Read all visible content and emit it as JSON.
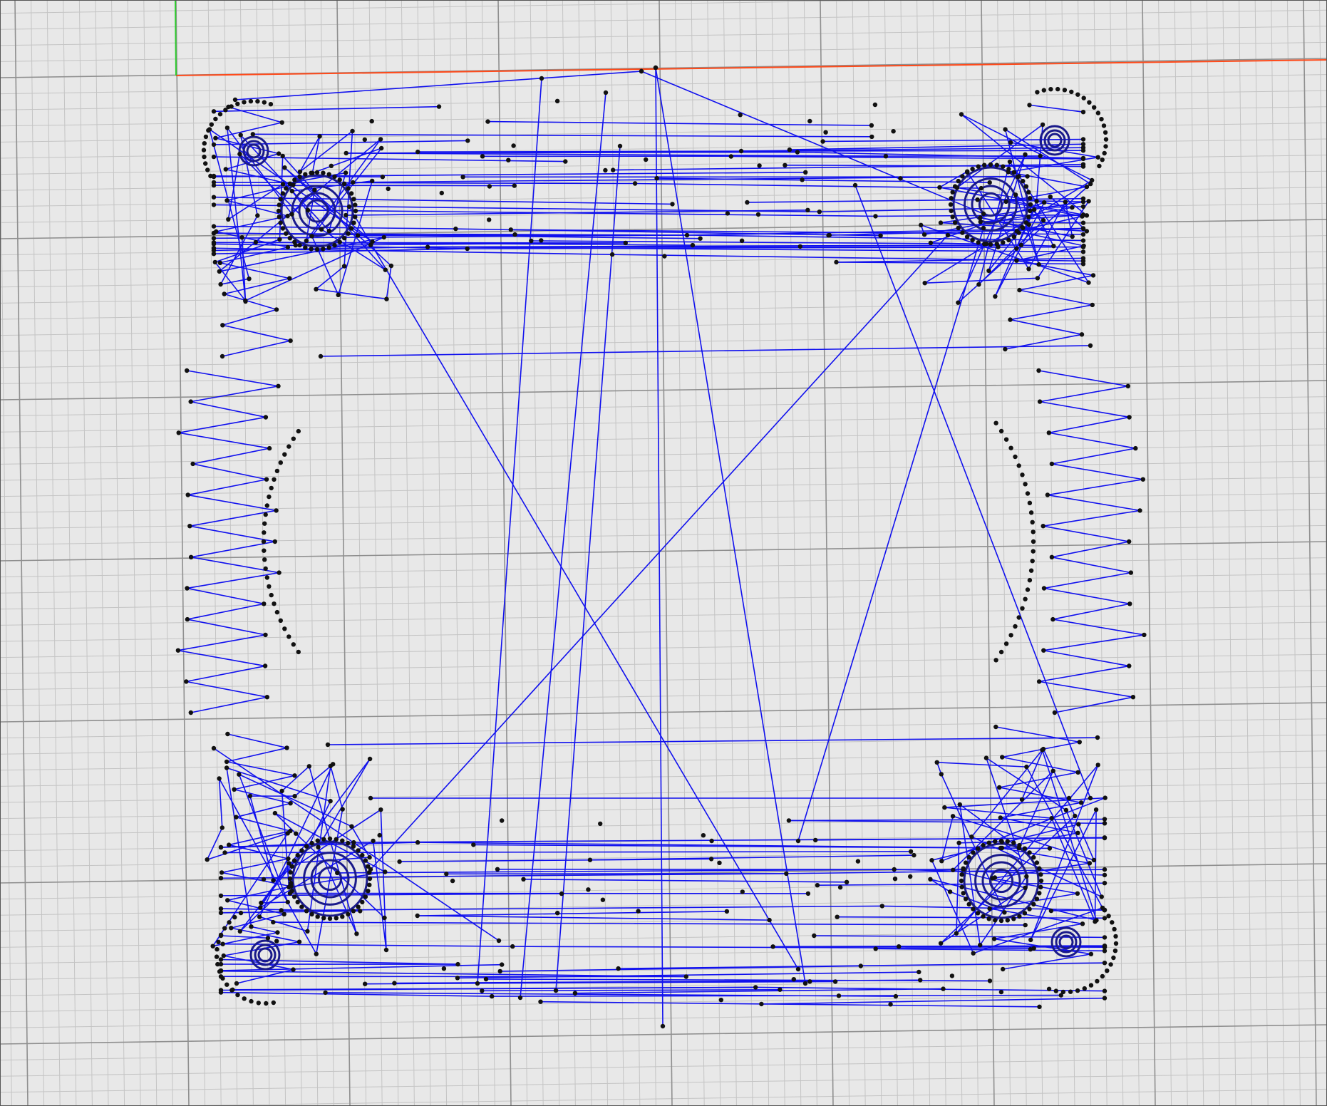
{
  "viewport": {
    "background": "#e8e8e8",
    "minor_grid_color": "#c4c4c4",
    "major_grid_color": "#8f8f8f",
    "x_axis_color": "#ff4a1a",
    "y_axis_color": "#2ecc2e",
    "path_color": "#1010ee",
    "vertex_color": "#111111"
  }
}
